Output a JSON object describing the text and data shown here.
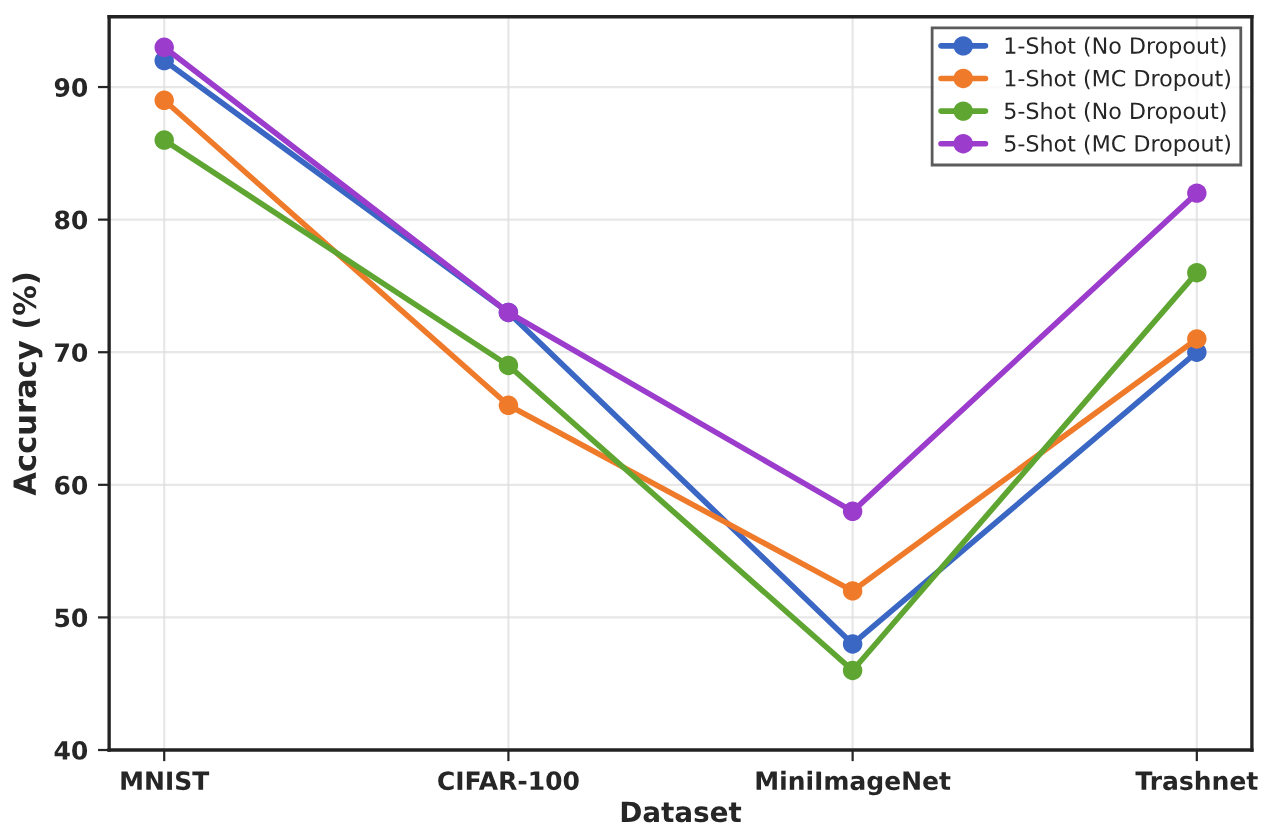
{
  "chart_data": {
    "type": "line",
    "xlabel": "Dataset",
    "ylabel": "Accuracy (%)",
    "categories": [
      "MNIST",
      "CIFAR-100",
      "MiniImageNet",
      "Trashnet"
    ],
    "series": [
      {
        "name": "1-Shot (No Dropout)",
        "color": "#3a66c4",
        "values": [
          92,
          73,
          48,
          70
        ]
      },
      {
        "name": "1-Shot (MC Dropout)",
        "color": "#ef7a2a",
        "values": [
          89,
          66,
          52,
          71
        ]
      },
      {
        "name": "5-Shot (No Dropout)",
        "color": "#5ea532",
        "values": [
          86,
          69,
          46,
          76
        ]
      },
      {
        "name": "5-Shot (MC Dropout)",
        "color": "#9b3ccc",
        "values": [
          93,
          73,
          58,
          82
        ]
      }
    ],
    "ylim": [
      40,
      95.3
    ],
    "yticks": [
      40,
      50,
      60,
      70,
      80,
      90
    ],
    "grid": true,
    "legend": "top right",
    "marker": "circle",
    "line_style": "solid"
  }
}
